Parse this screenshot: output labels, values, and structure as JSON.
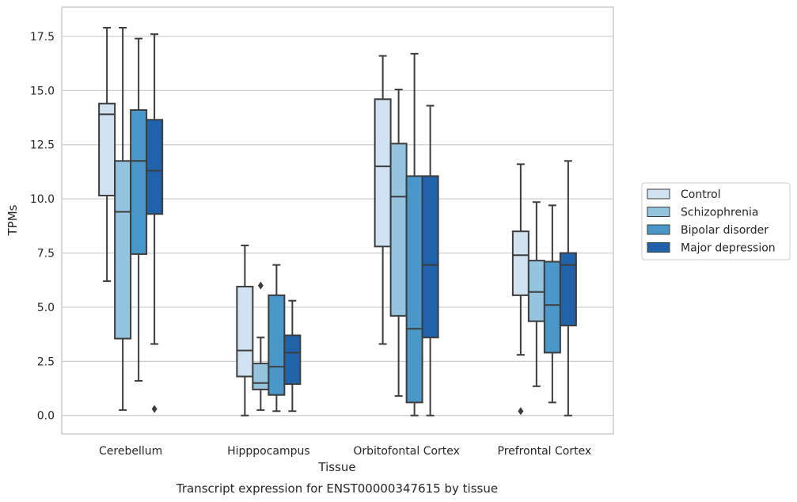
{
  "chart_data": {
    "type": "box",
    "caption": "Transcript expression for ENST00000347615 by tissue",
    "xlabel": "Tissue",
    "ylabel": "TPMs",
    "ylim": [
      -0.85,
      18.85
    ],
    "yticks": [
      "0.0",
      "2.5",
      "5.0",
      "7.5",
      "10.0",
      "12.5",
      "15.0",
      "17.5"
    ],
    "categories": [
      "Cerebellum",
      "Hipppocampus",
      "Orbitofontal Cortex",
      "Prefrontal Cortex"
    ],
    "grid": "horizontal",
    "legend_position": "right",
    "series": [
      {
        "name": "Control",
        "color": "#d0e1f2",
        "boxes": [
          {
            "whisker_low": 6.2,
            "q1": 10.15,
            "median": 13.9,
            "q3": 14.4,
            "whisker_high": 17.9,
            "outliers": []
          },
          {
            "whisker_low": 0.0,
            "q1": 1.8,
            "median": 3.0,
            "q3": 5.95,
            "whisker_high": 7.85,
            "outliers": []
          },
          {
            "whisker_low": 3.3,
            "q1": 7.8,
            "median": 11.5,
            "q3": 14.6,
            "whisker_high": 16.6,
            "outliers": []
          },
          {
            "whisker_low": 2.8,
            "q1": 5.55,
            "median": 7.4,
            "q3": 8.5,
            "whisker_high": 11.6,
            "outliers": [
              0.2
            ]
          }
        ]
      },
      {
        "name": "Schizophrenia",
        "color": "#94c4df",
        "boxes": [
          {
            "whisker_low": 0.25,
            "q1": 3.55,
            "median": 9.4,
            "q3": 11.75,
            "whisker_high": 17.9,
            "outliers": []
          },
          {
            "whisker_low": 0.25,
            "q1": 1.2,
            "median": 1.5,
            "q3": 2.4,
            "whisker_high": 3.6,
            "outliers": [
              6.0
            ]
          },
          {
            "whisker_low": 0.9,
            "q1": 4.6,
            "median": 10.1,
            "q3": 12.55,
            "whisker_high": 15.05,
            "outliers": []
          },
          {
            "whisker_low": 1.35,
            "q1": 4.35,
            "median": 5.7,
            "q3": 7.15,
            "whisker_high": 9.85,
            "outliers": []
          }
        ]
      },
      {
        "name": "Bipolar disorder",
        "color": "#4a98c9",
        "boxes": [
          {
            "whisker_low": 1.6,
            "q1": 7.45,
            "median": 11.75,
            "q3": 14.1,
            "whisker_high": 17.4,
            "outliers": []
          },
          {
            "whisker_low": 0.2,
            "q1": 0.95,
            "median": 2.25,
            "q3": 5.55,
            "whisker_high": 6.95,
            "outliers": []
          },
          {
            "whisker_low": 0.0,
            "q1": 0.6,
            "median": 4.0,
            "q3": 11.05,
            "whisker_high": 16.7,
            "outliers": []
          },
          {
            "whisker_low": 0.6,
            "q1": 2.9,
            "median": 5.1,
            "q3": 7.1,
            "whisker_high": 9.7,
            "outliers": []
          }
        ]
      },
      {
        "name": "Major depression",
        "color": "#2163aa",
        "boxes": [
          {
            "whisker_low": 3.3,
            "q1": 9.3,
            "median": 11.3,
            "q3": 13.65,
            "whisker_high": 17.6,
            "outliers": [
              0.3
            ]
          },
          {
            "whisker_low": 0.2,
            "q1": 1.45,
            "median": 2.9,
            "q3": 3.7,
            "whisker_high": 5.3,
            "outliers": []
          },
          {
            "whisker_low": 0.0,
            "q1": 3.6,
            "median": 6.95,
            "q3": 11.05,
            "whisker_high": 14.3,
            "outliers": []
          },
          {
            "whisker_low": 0.0,
            "q1": 4.15,
            "median": 6.95,
            "q3": 7.5,
            "whisker_high": 11.75,
            "outliers": []
          }
        ]
      }
    ]
  }
}
